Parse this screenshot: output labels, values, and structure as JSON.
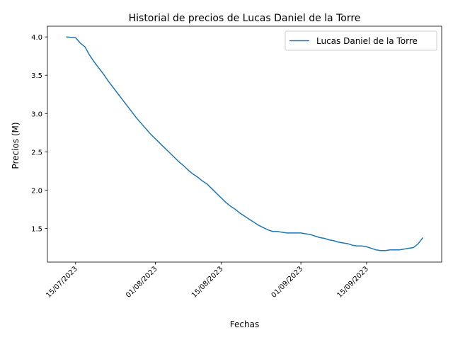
{
  "chart_data": {
    "type": "line",
    "title": "Historial de precios de Lucas Daniel de la Torre",
    "xlabel": "Fechas",
    "ylabel": "Precios (M)",
    "xlim": [
      "2023-07-09",
      "2023-10-01"
    ],
    "ylim": [
      1.06,
      4.14
    ],
    "x_ticks": [
      {
        "date": "2023-07-15",
        "label": "15/07/2023"
      },
      {
        "date": "2023-08-01",
        "label": "01/08/2023"
      },
      {
        "date": "2023-08-15",
        "label": "15/08/2023"
      },
      {
        "date": "2023-09-01",
        "label": "01/09/2023"
      },
      {
        "date": "2023-09-15",
        "label": "15/09/2023"
      }
    ],
    "y_ticks": [
      {
        "value": 1.5,
        "label": "1.5"
      },
      {
        "value": 2.0,
        "label": "2.0"
      },
      {
        "value": 2.5,
        "label": "2.5"
      },
      {
        "value": 3.0,
        "label": "3.0"
      },
      {
        "value": 3.5,
        "label": "3.5"
      },
      {
        "value": 4.0,
        "label": "4.0"
      }
    ],
    "grid": false,
    "legend": "top-right",
    "series": [
      {
        "name": "Lucas Daniel de la Torre",
        "color": "#1f77b4",
        "x": [
          "2023-07-13",
          "2023-07-15",
          "2023-07-16",
          "2023-07-17",
          "2023-07-18",
          "2023-07-19",
          "2023-07-20",
          "2023-07-21",
          "2023-07-22",
          "2023-07-23",
          "2023-07-24",
          "2023-07-25",
          "2023-07-26",
          "2023-07-27",
          "2023-07-28",
          "2023-07-29",
          "2023-07-30",
          "2023-07-31",
          "2023-08-01",
          "2023-08-02",
          "2023-08-03",
          "2023-08-04",
          "2023-08-05",
          "2023-08-06",
          "2023-08-07",
          "2023-08-08",
          "2023-08-09",
          "2023-08-10",
          "2023-08-11",
          "2023-08-12",
          "2023-08-13",
          "2023-08-14",
          "2023-08-15",
          "2023-08-16",
          "2023-08-17",
          "2023-08-18",
          "2023-08-19",
          "2023-08-20",
          "2023-08-21",
          "2023-08-22",
          "2023-08-23",
          "2023-08-24",
          "2023-08-25",
          "2023-08-26",
          "2023-08-27",
          "2023-08-28",
          "2023-08-29",
          "2023-08-30",
          "2023-08-31",
          "2023-09-01",
          "2023-09-02",
          "2023-09-03",
          "2023-09-04",
          "2023-09-05",
          "2023-09-06",
          "2023-09-07",
          "2023-09-08",
          "2023-09-09",
          "2023-09-10",
          "2023-09-11",
          "2023-09-12",
          "2023-09-13",
          "2023-09-14",
          "2023-09-15",
          "2023-09-16",
          "2023-09-17",
          "2023-09-18",
          "2023-09-19",
          "2023-09-20",
          "2023-09-21",
          "2023-09-22",
          "2023-09-23",
          "2023-09-24",
          "2023-09-25",
          "2023-09-26",
          "2023-09-27"
        ],
        "y": [
          4.0,
          3.99,
          3.92,
          3.87,
          3.76,
          3.67,
          3.59,
          3.51,
          3.42,
          3.34,
          3.26,
          3.18,
          3.1,
          3.02,
          2.94,
          2.87,
          2.8,
          2.73,
          2.67,
          2.61,
          2.55,
          2.49,
          2.43,
          2.37,
          2.32,
          2.26,
          2.21,
          2.17,
          2.12,
          2.08,
          2.02,
          1.96,
          1.9,
          1.84,
          1.79,
          1.75,
          1.7,
          1.66,
          1.62,
          1.58,
          1.54,
          1.51,
          1.48,
          1.46,
          1.46,
          1.45,
          1.44,
          1.44,
          1.44,
          1.44,
          1.43,
          1.42,
          1.4,
          1.38,
          1.37,
          1.35,
          1.34,
          1.32,
          1.31,
          1.3,
          1.28,
          1.27,
          1.27,
          1.26,
          1.24,
          1.22,
          1.21,
          1.21,
          1.22,
          1.22,
          1.22,
          1.23,
          1.24,
          1.25,
          1.3,
          1.38
        ]
      }
    ]
  }
}
